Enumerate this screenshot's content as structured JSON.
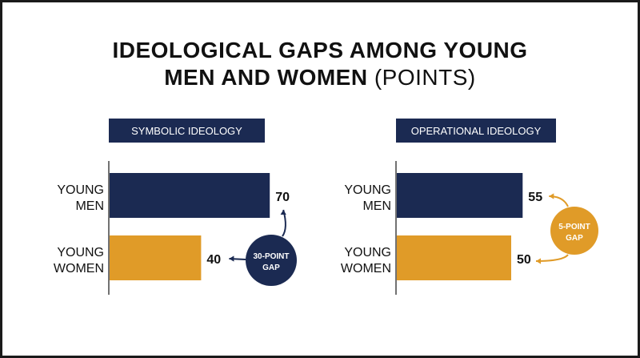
{
  "title_line1": "IDEOLOGICAL GAPS AMONG YOUNG",
  "title_line2_bold": "MEN AND WOMEN",
  "title_line2_light": "(POINTS)",
  "colors": {
    "navy": "#1b2a52",
    "gold": "#e09b28",
    "axis": "#444444"
  },
  "chart_data": [
    {
      "type": "bar",
      "title": "SYMBOLIC IDEOLOGY",
      "categories": [
        "YOUNG MEN",
        "YOUNG WOMEN"
      ],
      "values": [
        70,
        40
      ],
      "annotation": {
        "line1": "30-POINT",
        "line2": "GAP",
        "color": "navy"
      }
    },
    {
      "type": "bar",
      "title": "OPERATIONAL IDEOLOGY",
      "categories": [
        "YOUNG MEN",
        "YOUNG WOMEN"
      ],
      "values": [
        55,
        50
      ],
      "annotation": {
        "line1": "5-POINT",
        "line2": "GAP",
        "color": "gold"
      }
    }
  ]
}
